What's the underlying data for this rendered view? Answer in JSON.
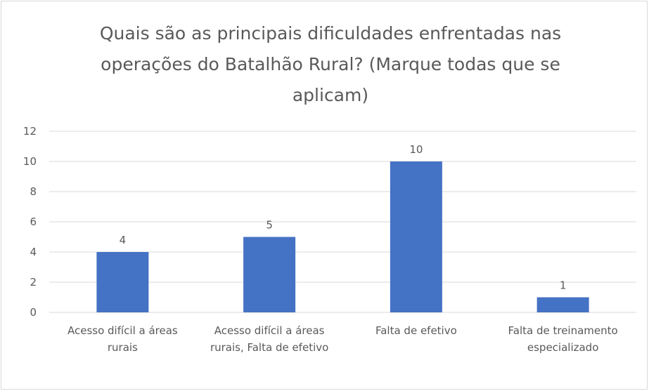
{
  "chart_data": {
    "type": "bar",
    "title": "Quais são as principais dificuldades enfrentadas nas operações do Batalhão Rural? (Marque todas que se aplicam)",
    "categories": [
      "Acesso difícil a áreas rurais",
      "Acesso difícil a áreas rurais, Falta de efetivo",
      "Falta de efetivo",
      "Falta de treinamento especializado"
    ],
    "values": [
      4,
      5,
      10,
      1
    ],
    "color": "#4472c4",
    "ylim": [
      0,
      12
    ],
    "yticks": [
      0,
      2,
      4,
      6,
      8,
      10,
      12
    ],
    "grid": true
  }
}
